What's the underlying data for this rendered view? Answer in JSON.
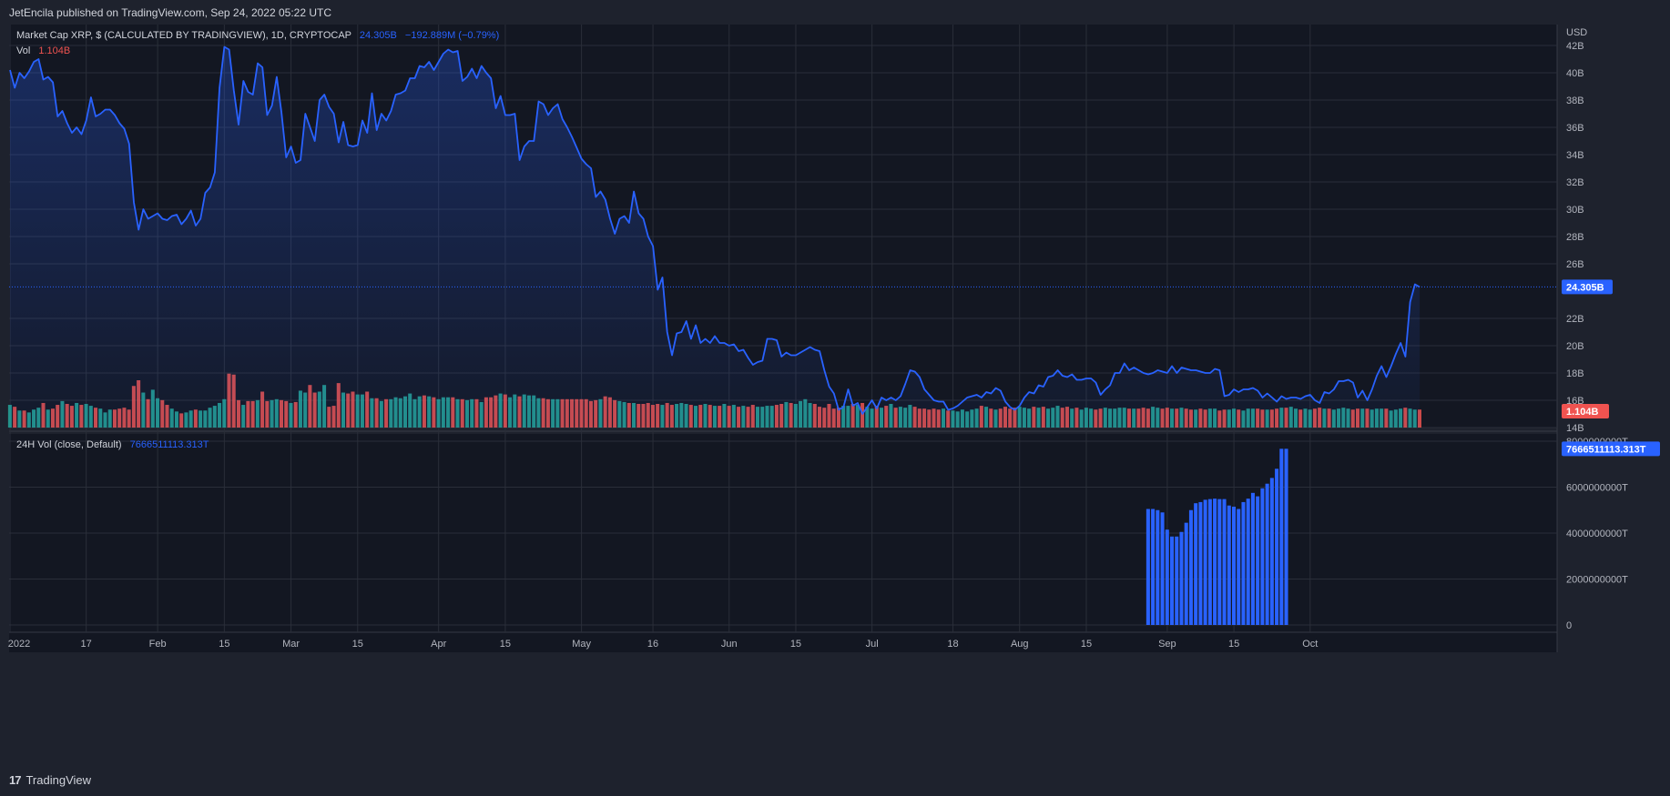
{
  "header": {
    "published": "JetEncila published on TradingView.com, Sep 24, 2022 05:22 UTC"
  },
  "legend": {
    "main_title": "Market Cap XRP, $ (CALCULATED BY TRADINGVIEW), 1D, CRYPTOCAP",
    "main_value": "24.305B",
    "main_change": "−192.889M (−0.79%)",
    "vol_label": "Vol",
    "vol_value": "1.104B",
    "vol24_title": "24H Vol (close, Default)",
    "vol24_value": "7666511113.313T"
  },
  "footer": {
    "brand": "TradingView",
    "logo": "17"
  },
  "colors": {
    "line": "#2962ff",
    "up": "#26a69a",
    "down": "#ef5350",
    "bg": "#131722",
    "grid": "#2a2e39",
    "text": "#b2b5be"
  },
  "chart_data": [
    {
      "type": "area",
      "name": "Market Cap XRP",
      "y_unit": "USD",
      "ylim": [
        14,
        43
      ],
      "y_ticks": [
        "42B",
        "40B",
        "38B",
        "36B",
        "34B",
        "32B",
        "30B",
        "28B",
        "26B",
        "22B",
        "20B",
        "18B",
        "16B",
        "14B"
      ],
      "x_ticks": [
        "2022",
        "17",
        "Feb",
        "15",
        "Mar",
        "15",
        "Apr",
        "15",
        "May",
        "16",
        "Jun",
        "15",
        "Jul",
        "18",
        "Aug",
        "15",
        "Sep",
        "15",
        "Oct"
      ],
      "x_start": "2022-01-01",
      "last_value_label": "24.305B",
      "y": [
        40.2,
        38.9,
        40.0,
        39.6,
        40.1,
        40.8,
        41.0,
        39.5,
        39.7,
        39.3,
        36.8,
        37.2,
        36.3,
        35.6,
        36.0,
        35.5,
        36.5,
        38.2,
        36.8,
        37.0,
        37.3,
        37.3,
        36.9,
        36.3,
        35.9,
        34.8,
        30.5,
        28.5,
        30.0,
        29.3,
        29.5,
        29.7,
        29.3,
        29.2,
        29.5,
        29.6,
        28.9,
        29.3,
        29.9,
        28.8,
        29.3,
        31.2,
        31.6,
        32.7,
        38.9,
        41.9,
        41.7,
        38.7,
        36.2,
        39.4,
        38.6,
        38.4,
        40.7,
        40.4,
        36.9,
        37.6,
        39.7,
        37.1,
        33.8,
        34.6,
        33.4,
        33.6,
        37.0,
        36.0,
        35.0,
        38.0,
        38.4,
        37.5,
        37.0,
        34.9,
        36.4,
        34.7,
        34.6,
        34.7,
        36.5,
        35.6,
        38.5,
        35.8,
        37.0,
        36.5,
        37.2,
        38.4,
        38.5,
        38.7,
        39.6,
        39.6,
        40.5,
        40.4,
        40.8,
        40.2,
        40.8,
        41.4,
        41.7,
        41.5,
        41.6,
        39.4,
        39.7,
        40.3,
        39.6,
        40.5,
        40.0,
        39.6,
        37.4,
        38.3,
        36.9,
        36.9,
        37.0,
        33.6,
        34.6,
        35.0,
        35.0,
        37.9,
        37.7,
        36.9,
        37.4,
        37.7,
        36.6,
        36.0,
        35.3,
        34.5,
        33.7,
        33.3,
        33.0,
        30.9,
        31.3,
        30.7,
        29.3,
        28.2,
        29.3,
        29.5,
        29.0,
        31.3,
        29.7,
        29.3,
        28.0,
        27.3,
        24.1,
        25.0,
        21.0,
        19.3,
        20.9,
        21.0,
        21.8,
        20.5,
        21.5,
        20.2,
        20.5,
        20.2,
        20.7,
        20.2,
        20.2,
        20.0,
        20.1,
        19.6,
        19.7,
        19.1,
        18.6,
        18.8,
        18.9,
        20.5,
        20.5,
        20.4,
        19.2,
        19.5,
        19.3,
        19.3,
        19.5,
        19.7,
        19.9,
        19.7,
        19.6,
        18.2,
        17.0,
        16.5,
        15.3,
        15.5,
        16.8,
        15.6,
        15.8,
        15.0,
        15.5,
        16.0,
        15.4,
        16.2,
        16.0,
        16.2,
        16.0,
        16.3,
        17.2,
        18.2,
        18.1,
        17.7,
        16.8,
        16.4,
        16.0,
        15.9,
        15.9,
        15.3,
        15.4,
        15.6,
        15.9,
        16.2,
        16.3,
        16.4,
        16.2,
        16.6,
        16.5,
        16.9,
        16.7,
        15.9,
        15.5,
        15.3,
        15.6,
        16.2,
        16.6,
        16.5,
        17.1,
        17.0,
        17.7,
        17.8,
        18.2,
        17.8,
        17.7,
        17.9,
        17.5,
        17.5,
        17.6,
        17.6,
        17.3,
        16.4,
        16.8,
        17.1,
        18.0,
        18.0,
        18.7,
        18.2,
        18.4,
        18.2,
        18.0,
        17.9,
        18.0,
        18.2,
        18.1,
        18.0,
        18.5,
        18.0,
        18.4,
        18.3,
        18.2,
        18.2,
        18.1,
        18.0,
        18.0,
        18.3,
        18.2,
        16.3,
        16.4,
        16.8,
        16.6,
        16.8,
        16.8,
        16.9,
        16.7,
        16.2,
        16.5,
        16.2,
        15.9,
        16.3,
        16.1,
        16.2,
        16.2,
        16.1,
        16.3,
        16.4,
        16.0,
        15.8,
        16.6,
        16.5,
        16.8,
        17.4,
        17.4,
        17.5,
        17.3,
        16.2,
        16.7,
        16.0,
        16.8,
        17.8,
        18.5,
        17.7,
        18.5,
        19.4,
        20.2,
        19.2,
        23.2,
        24.5,
        24.3
      ]
    },
    {
      "type": "bar",
      "name": "Vol",
      "last_value_label": "1.104B",
      "values": [
        2.4,
        2.2,
        1.8,
        1.8,
        1.6,
        1.9,
        2.1,
        2.6,
        1.9,
        2.0,
        2.4,
        2.8,
        2.5,
        2.3,
        2.6,
        2.4,
        2.5,
        2.3,
        2.1,
        2.0,
        1.6,
        1.9,
        1.9,
        2.0,
        2.1,
        1.9,
        4.4,
        5.0,
        3.7,
        3.0,
        4.0,
        3.1,
        2.9,
        2.4,
        2.0,
        1.7,
        1.5,
        1.6,
        1.8,
        1.9,
        1.8,
        1.8,
        2.1,
        2.3,
        2.6,
        3.0,
        5.7,
        5.6,
        2.9,
        2.4,
        2.8,
        2.8,
        2.9,
        3.8,
        2.8,
        2.9,
        3.0,
        2.9,
        2.8,
        2.6,
        2.7,
        3.9,
        3.7,
        4.5,
        3.7,
        3.8,
        4.5,
        2.2,
        2.3,
        4.7,
        3.7,
        3.6,
        3.8,
        3.5,
        3.5,
        3.8,
        3.1,
        3.1,
        2.8,
        3.0,
        3.0,
        3.2,
        3.1,
        3.3,
        3.6,
        3.0,
        3.3,
        3.4,
        3.3,
        3.2,
        3.0,
        3.2,
        3.2,
        3.2,
        3.0,
        3.0,
        2.9,
        3.0,
        3.0,
        2.7,
        3.2,
        3.2,
        3.4,
        3.6,
        3.5,
        3.2,
        3.5,
        3.3,
        3.5,
        3.4,
        3.4,
        3.1,
        3.1,
        3.0,
        3.0,
        3.0,
        3.0,
        3.0,
        3.0,
        3.0,
        3.0,
        3.0,
        2.8,
        2.9,
        3.0,
        3.3,
        3.2,
        2.9,
        2.8,
        2.7,
        2.6,
        2.6,
        2.5,
        2.5,
        2.6,
        2.4,
        2.5,
        2.4,
        2.6,
        2.4,
        2.5,
        2.6,
        2.5,
        2.4,
        2.3,
        2.4,
        2.5,
        2.4,
        2.3,
        2.3,
        2.5,
        2.3,
        2.4,
        2.2,
        2.3,
        2.2,
        2.4,
        2.2,
        2.2,
        2.3,
        2.3,
        2.4,
        2.5,
        2.7,
        2.6,
        2.5,
        2.8,
        3.0,
        2.6,
        2.5,
        2.2,
        2.1,
        2.5,
        2.0,
        2.1,
        2.3,
        2.3,
        2.5,
        2.4,
        2.6,
        2.2,
        2.0,
        2.3,
        2.1,
        2.3,
        2.5,
        2.1,
        2.2,
        2.1,
        2.4,
        2.2,
        2.0,
        2.0,
        1.9,
        2.0,
        1.9,
        2.0,
        1.8,
        1.8,
        1.7,
        1.9,
        1.7,
        1.9,
        2.0,
        2.3,
        2.2,
        2.0,
        1.9,
        2.0,
        2.2,
        2.0,
        2.1,
        2.2,
        2.1,
        2.0,
        2.2,
        2.1,
        2.2,
        2.0,
        2.1,
        2.3,
        2.1,
        2.2,
        2.0,
        2.1,
        1.9,
        2.1,
        2.0,
        1.9,
        2.0,
        2.1,
        2.0,
        2.0,
        2.1,
        2.1,
        2.0,
        2.0,
        2.0,
        2.1,
        2.0,
        2.2,
        2.1,
        2.0,
        2.1,
        2.0,
        2.0,
        2.1,
        2.0,
        1.9,
        1.9,
        2.0,
        1.9,
        2.0,
        2.0,
        1.8,
        1.9,
        1.9,
        2.0,
        1.9,
        1.8,
        2.0,
        2.0,
        2.0,
        1.9,
        1.9,
        1.9,
        2.0,
        2.1,
        2.1,
        2.2,
        2.0,
        1.9,
        2.0,
        1.9,
        2.0,
        2.1,
        2.0,
        2.0,
        1.9,
        2.0,
        2.1,
        2.0,
        1.9,
        2.0,
        2.0,
        2.0,
        1.9,
        2.0,
        2.0,
        2.0,
        1.8,
        1.9,
        2.0,
        2.1,
        2.0,
        1.9,
        1.9
      ]
    },
    {
      "type": "bar",
      "name": "24H Vol (close, Default)",
      "ylim": [
        0,
        8000000000
      ],
      "y_ticks": [
        "8000000000T",
        "6000000000T",
        "4000000000T",
        "2000000000T",
        "0"
      ],
      "last_value_label": "7666511113.313T",
      "x_start": "2022-08-28",
      "values": [
        5050,
        5050,
        5000,
        4900,
        4150,
        3850,
        3850,
        4050,
        4450,
        5000,
        5300,
        5350,
        5450,
        5480,
        5500,
        5480,
        5480,
        5200,
        5150,
        5050,
        5350,
        5500,
        5750,
        5600,
        5950,
        6150,
        6400,
        6800,
        7670,
        7670
      ]
    }
  ]
}
